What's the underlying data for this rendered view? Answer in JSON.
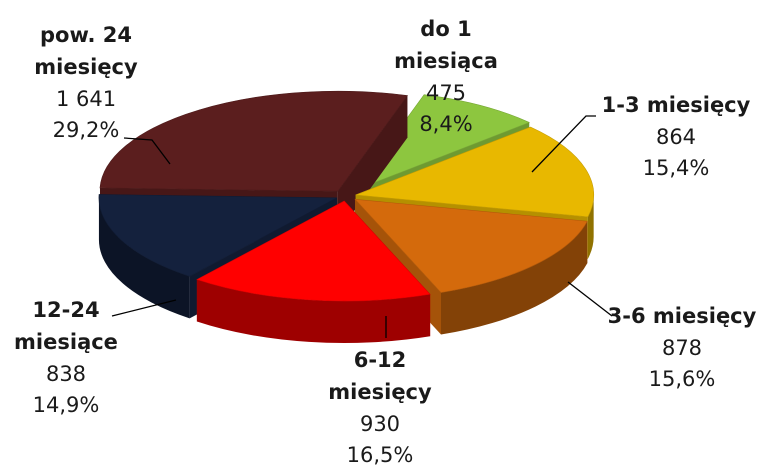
{
  "chart_data": {
    "type": "pie",
    "style": "3d-exploded",
    "grid": false,
    "legend": "none",
    "slices": [
      {
        "name_lines": [
          "do 1",
          "miesiąca"
        ],
        "value": "475",
        "percent": "8,4%",
        "v": 8.4,
        "color": "#8dc63f"
      },
      {
        "name_lines": [
          "1-3 miesięcy"
        ],
        "value": "864",
        "percent": "15,4%",
        "v": 15.4,
        "color": "#e8b800"
      },
      {
        "name_lines": [
          "3-6 miesięcy"
        ],
        "value": "878",
        "percent": "15,6%",
        "v": 15.6,
        "color": "#d46a0c"
      },
      {
        "name_lines": [
          "6-12",
          "miesięcy"
        ],
        "value": "930",
        "percent": "16,5%",
        "v": 16.5,
        "color": "#ff0000"
      },
      {
        "name_lines": [
          "12-24",
          "miesiące"
        ],
        "value": "838",
        "percent": "14,9%",
        "v": 14.9,
        "color": "#14213d"
      },
      {
        "name_lines": [
          "pow. 24",
          "miesięcy"
        ],
        "value": "1 641",
        "percent": "29,2%",
        "v": 29.2,
        "color": "#5b1e1e"
      }
    ]
  }
}
